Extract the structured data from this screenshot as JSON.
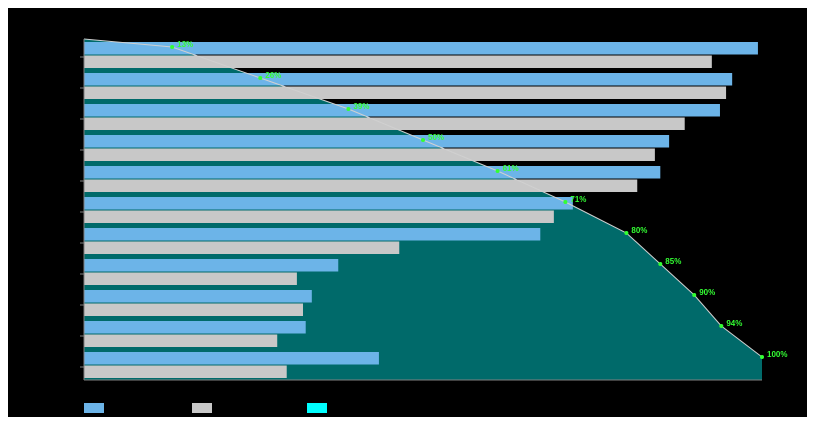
{
  "chart_data": {
    "type": "bar",
    "orientation": "horizontal",
    "categories": [
      null,
      null,
      null,
      null,
      null,
      null,
      null,
      null,
      null,
      null,
      null
    ],
    "xlim": [
      0,
      100
    ],
    "series": [
      {
        "color": "#6cb4e8",
        "values": [
          99.4,
          95.6,
          93.8,
          86.3,
          85.0,
          72.1,
          67.3,
          37.5,
          33.6,
          32.7,
          43.5
        ]
      },
      {
        "color": "#c8c8c8",
        "values": [
          92.6,
          94.7,
          88.6,
          84.2,
          81.6,
          69.3,
          46.5,
          31.4,
          32.3,
          28.5,
          29.9
        ]
      },
      {
        "type": "area",
        "color": "#006a6a",
        "legend_color": "#00ffff",
        "line_color": "#d0d0d0",
        "marker_color": "#33ff33",
        "values": [
          13,
          26,
          39,
          50,
          61,
          71,
          80,
          85,
          90,
          94,
          100
        ],
        "value_labels": [
          "13%",
          "26%",
          "39%",
          "50%",
          "61%",
          "71%",
          "80%",
          "85%",
          "90%",
          "94%",
          "100%"
        ]
      }
    ]
  }
}
